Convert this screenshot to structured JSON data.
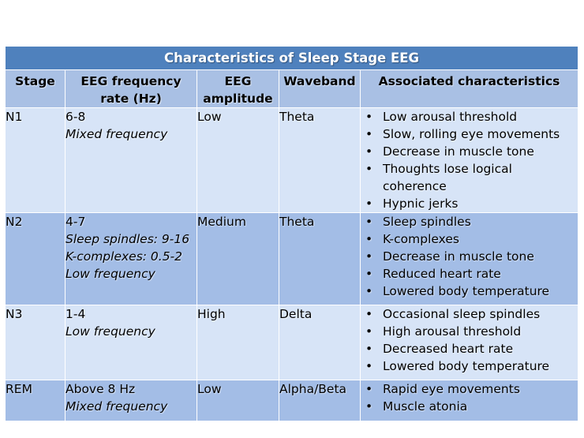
{
  "title": "Characteristics of Sleep Stage EEG",
  "headers": [
    "Stage",
    "EEG frequency rate (Hz)",
    "EEG amplitude",
    "Waveband",
    "Associated characteristics"
  ],
  "rows": [
    {
      "stage": "N1",
      "freq": "6-8",
      "freq_notes": [
        "Mixed frequency"
      ],
      "amplitude": "Low",
      "waveband": "Theta",
      "characteristics": [
        "Low arousal threshold",
        "Slow, rolling eye movements",
        "Decrease in muscle tone",
        "Thoughts lose logical coherence",
        "Hypnic jerks"
      ]
    },
    {
      "stage": "N2",
      "freq": "4-7",
      "freq_notes": [
        "Sleep spindles: 9-16",
        "K-complexes: 0.5-2",
        "Low frequency"
      ],
      "amplitude": "Medium",
      "waveband": "Theta",
      "characteristics": [
        "Sleep spindles",
        "K-complexes",
        "Decrease in muscle tone",
        "Reduced heart rate",
        "Lowered body temperature"
      ]
    },
    {
      "stage": "N3",
      "freq": "1-4",
      "freq_notes": [
        "Low frequency"
      ],
      "amplitude": "High",
      "waveband": "Delta",
      "characteristics": [
        "Occasional sleep spindles",
        "High arousal threshold",
        "Decreased heart rate",
        "Lowered body temperature"
      ]
    },
    {
      "stage": "REM",
      "freq": "Above 8 Hz",
      "freq_notes": [
        "Mixed frequency"
      ],
      "amplitude": "Low",
      "waveband": "Alpha/Beta",
      "characteristics": [
        "Rapid eye movements",
        "Muscle atonia"
      ]
    }
  ],
  "colors": {
    "title_bg": "#4f81bd",
    "header_bg": "#a9c0e4",
    "row_light": "#d7e4f7",
    "row_dark": "#a3bde6"
  }
}
